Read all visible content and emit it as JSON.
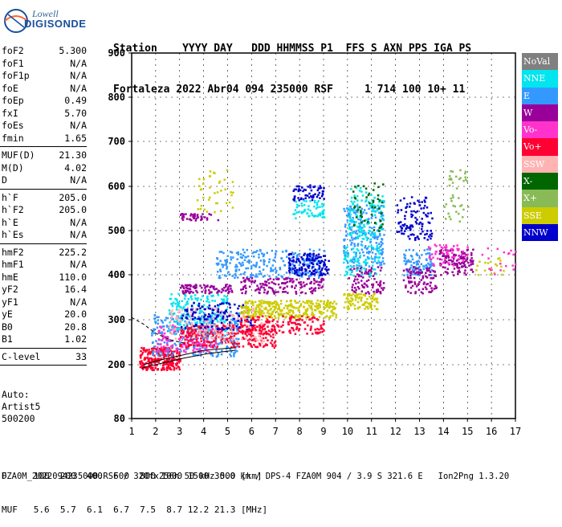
{
  "logo": {
    "line1": "Lowell",
    "line2": "DIGISONDE"
  },
  "header": {
    "labels": "Station    YYYY DAY   DDD HHMMSS P1  FFS S AXN PPS IGA PS",
    "values": "Fortaleza 2022 Abr04 094 235000 RSF     1 714 100 10+ 11"
  },
  "params": [
    [
      [
        "foF2",
        "5.300"
      ],
      [
        "foF1",
        "N/A"
      ],
      [
        "foF1p",
        "N/A"
      ],
      [
        "foE",
        "N/A"
      ],
      [
        "foEp",
        "0.49"
      ],
      [
        "fxI",
        "5.70"
      ],
      [
        "foEs",
        "N/A"
      ],
      [
        "fmin",
        "1.65"
      ]
    ],
    [
      [
        "MUF(D)",
        "21.30"
      ],
      [
        "M(D)",
        "4.02"
      ],
      [
        "D",
        "N/A"
      ]
    ],
    [
      [
        "h`F",
        "205.0"
      ],
      [
        "h`F2",
        "205.0"
      ],
      [
        "h`E",
        "N/A"
      ],
      [
        "h`Es",
        "N/A"
      ]
    ],
    [
      [
        "hmF2",
        "225.2"
      ],
      [
        "hmF1",
        "N/A"
      ],
      [
        "hmE",
        "110.0"
      ],
      [
        "yF2",
        "16.4"
      ],
      [
        "yF1",
        "N/A"
      ],
      [
        "yE",
        "20.0"
      ],
      [
        "B0",
        "20.8"
      ],
      [
        "B1",
        "1.02"
      ]
    ],
    [
      [
        "C-level",
        "33"
      ]
    ]
  ],
  "auto": {
    "l1": "Auto:",
    "l2": "Artist5",
    "l3": "500200"
  },
  "legend": [
    {
      "label": "NoVal",
      "color": "#808080"
    },
    {
      "label": "NNE",
      "color": "#00e5ee"
    },
    {
      "label": "E",
      "color": "#3399ff"
    },
    {
      "label": "W",
      "color": "#990099"
    },
    {
      "label": "Vo-",
      "color": "#ff33cc"
    },
    {
      "label": "Vo+",
      "color": "#ff0033"
    },
    {
      "label": "SSW",
      "color": "#ffb3b3"
    },
    {
      "label": "X-",
      "color": "#006600"
    },
    {
      "label": "X+",
      "color": "#88bb55"
    },
    {
      "label": "SSE",
      "color": "#cccc00"
    },
    {
      "label": "NNW",
      "color": "#0000cc"
    }
  ],
  "footer": {
    "d_row": "D     100  200  400  600  800 1000 1500 3000 [km]",
    "muf_row": "MUF   5.6  5.7  6.1  6.7  7.5  8.7 12.2 21.3 [MHz]",
    "info": "FZA0M_2022094235000.RSF / 320fx256h 50 kHz 5.0 km / DPS-4 FZA0M 904 / 3.9 S 321.6 E   Ion2Png 1.3.20"
  },
  "chart_data": {
    "type": "scatter",
    "x_ticks": [
      1,
      2,
      3,
      4,
      5,
      6,
      7,
      8,
      9,
      10,
      11,
      12,
      13,
      14,
      15,
      16,
      17
    ],
    "y_ticks": [
      80,
      200,
      300,
      400,
      500,
      600,
      700,
      800,
      900
    ],
    "xlim": [
      1,
      17
    ],
    "ylim": [
      80,
      900
    ],
    "grid": true,
    "legend_placement": "right",
    "clusters": [
      {
        "mode": "Vo+",
        "x": [
          1.3,
          3.0
        ],
        "y": [
          190,
          240
        ],
        "n": 260
      },
      {
        "mode": "E",
        "x": [
          1.8,
          5.5
        ],
        "y": [
          220,
          320
        ],
        "n": 320
      },
      {
        "mode": "Vo-",
        "x": [
          2.0,
          4.5
        ],
        "y": [
          230,
          290
        ],
        "n": 160
      },
      {
        "mode": "NNE",
        "x": [
          2.5,
          5.0
        ],
        "y": [
          270,
          360
        ],
        "n": 200
      },
      {
        "mode": "Vo+",
        "x": [
          3.0,
          7.0
        ],
        "y": [
          240,
          290
        ],
        "n": 260
      },
      {
        "mode": "SSW",
        "x": [
          2.5,
          6.5
        ],
        "y": [
          250,
          330
        ],
        "n": 180
      },
      {
        "mode": "NNW",
        "x": [
          3.0,
          6.0
        ],
        "y": [
          280,
          340
        ],
        "n": 120
      },
      {
        "mode": "W",
        "x": [
          3.0,
          5.2
        ],
        "y": [
          360,
          380
        ],
        "n": 90
      },
      {
        "mode": "SSE",
        "x": [
          5.5,
          9.5
        ],
        "y": [
          305,
          345
        ],
        "n": 320
      },
      {
        "mode": "Vo+",
        "x": [
          5.5,
          9.0
        ],
        "y": [
          270,
          310
        ],
        "n": 160
      },
      {
        "mode": "E",
        "x": [
          4.5,
          9.0
        ],
        "y": [
          395,
          460
        ],
        "n": 260
      },
      {
        "mode": "W",
        "x": [
          5.5,
          9.0
        ],
        "y": [
          360,
          395
        ],
        "n": 150
      },
      {
        "mode": "NNW",
        "x": [
          7.5,
          9.2
        ],
        "y": [
          400,
          450
        ],
        "n": 130
      },
      {
        "mode": "NNW",
        "x": [
          7.7,
          9.0
        ],
        "y": [
          570,
          605
        ],
        "n": 60
      },
      {
        "mode": "NNE",
        "x": [
          7.7,
          9.0
        ],
        "y": [
          530,
          570
        ],
        "n": 60
      },
      {
        "mode": "W",
        "x": [
          3.0,
          4.6
        ],
        "y": [
          525,
          540
        ],
        "n": 40
      },
      {
        "mode": "SSE",
        "x": [
          3.7,
          5.2
        ],
        "y": [
          540,
          640
        ],
        "n": 40
      },
      {
        "mode": "E",
        "x": [
          9.8,
          11.5
        ],
        "y": [
          420,
          560
        ],
        "n": 220
      },
      {
        "mode": "SSE",
        "x": [
          9.8,
          11.3
        ],
        "y": [
          325,
          360
        ],
        "n": 90
      },
      {
        "mode": "W",
        "x": [
          10.0,
          11.5
        ],
        "y": [
          360,
          420
        ],
        "n": 90
      },
      {
        "mode": "NNE",
        "x": [
          10.0,
          11.5
        ],
        "y": [
          480,
          600
        ],
        "n": 120
      },
      {
        "mode": "X-",
        "x": [
          10.2,
          11.5
        ],
        "y": [
          500,
          610
        ],
        "n": 50
      },
      {
        "mode": "NNW",
        "x": [
          12.0,
          13.5
        ],
        "y": [
          480,
          580
        ],
        "n": 110
      },
      {
        "mode": "E",
        "x": [
          12.3,
          13.5
        ],
        "y": [
          400,
          460
        ],
        "n": 100
      },
      {
        "mode": "W",
        "x": [
          12.3,
          13.7
        ],
        "y": [
          360,
          420
        ],
        "n": 90
      },
      {
        "mode": "W",
        "x": [
          13.8,
          15.2
        ],
        "y": [
          400,
          460
        ],
        "n": 120
      },
      {
        "mode": "X+",
        "x": [
          14.0,
          15.0
        ],
        "y": [
          520,
          640
        ],
        "n": 40
      },
      {
        "mode": "SSE",
        "x": [
          15.0,
          16.5
        ],
        "y": [
          400,
          440
        ],
        "n": 20
      },
      {
        "mode": "Vo-",
        "x": [
          15.5,
          17.0
        ],
        "y": [
          400,
          470
        ],
        "n": 20
      },
      {
        "mode": "NNE",
        "x": [
          9.8,
          11.3
        ],
        "y": [
          400,
          470
        ],
        "n": 80
      },
      {
        "mode": "Vo-",
        "x": [
          13.3,
          15.0
        ],
        "y": [
          420,
          470
        ],
        "n": 60
      }
    ],
    "traces": [
      {
        "name": "profile",
        "x": [
          1.4,
          1.8,
          2.4,
          3.2,
          4.2,
          5.3
        ],
        "y": [
          192,
          198,
          205,
          215,
          225,
          232
        ]
      },
      {
        "name": "lower",
        "x": [
          1.5,
          2.0,
          3.0,
          4.0,
          5.3
        ],
        "y": [
          200,
          208,
          220,
          232,
          238
        ]
      },
      {
        "name": "dashed",
        "x": [
          1.0,
          1.5,
          2.0,
          2.6,
          3.2
        ],
        "y": [
          305,
          290,
          270,
          255,
          248
        ]
      }
    ]
  }
}
